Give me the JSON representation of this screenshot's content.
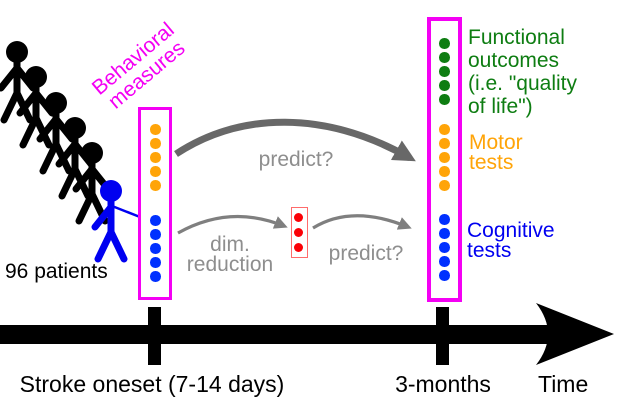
{
  "colors": {
    "magenta": "#f400f4",
    "orange": "#ffa408",
    "blue": "#0000f0",
    "blue_dot": "#0030ff",
    "green": "#0e7d12",
    "red": "#fb0006",
    "red_box_border": "#ff6b6b",
    "gray_text": "#8e8e8e",
    "gray_arrow_big": "#686868",
    "gray_arrow_small": "#7f7f7f",
    "black": "#000000"
  },
  "patients": {
    "label": "96 patients",
    "black_figures": 5,
    "blue_figures": 1
  },
  "measures_label": "Behavioral\nmeasures",
  "baseline_panel": {
    "orange_dots": 5,
    "blue_dots": 5
  },
  "reduced_panel": {
    "red_dots": 3
  },
  "followup_panel": {
    "green_dots": 5,
    "orange_dots": 5,
    "blue_dots": 5,
    "functional_label": "Functional\noutcomes\n(i.e. \"quality\nof life\")",
    "motor_label": "Motor\ntests",
    "cognitive_label": "Cognitive\ntests"
  },
  "annotations": {
    "predict_top": "predict?",
    "dim_reduction": "dim.\nreduction",
    "predict_bottom": "predict?"
  },
  "timeline": {
    "start_label": "Stroke oneset (7-14 days)",
    "end_label": "3-months",
    "axis_label": "Time"
  }
}
